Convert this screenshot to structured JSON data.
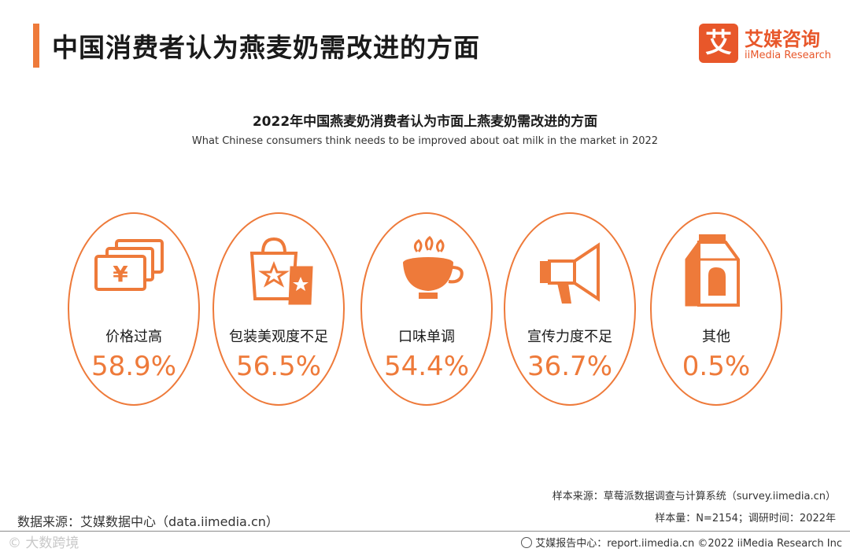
{
  "header": {
    "title": "中国消费者认为燕麦奶需改进的方面",
    "logo_mark": "艾",
    "logo_cn": "艾媒咨询",
    "logo_en": "iiMedia Research"
  },
  "chart_data": {
    "type": "table",
    "title": "2022年中国燕麦奶消费者认为市面上燕麦奶需改进的方面",
    "subtitle": "What Chinese consumers think needs to be improved about oat milk in the market in 2022",
    "categories": [
      "价格过高",
      "包装美观度不足",
      "口味单调",
      "宣传力度不足",
      "其他"
    ],
    "values": [
      58.9,
      56.5,
      54.4,
      36.7,
      0.5
    ],
    "value_labels": [
      "58.9%",
      "56.5%",
      "54.4%",
      "36.7%",
      "0.5%"
    ],
    "icons": [
      "money-icon",
      "shopping-bag-icon",
      "coffee-cup-icon",
      "megaphone-icon",
      "milk-carton-icon"
    ],
    "accent_color": "#ee7a3a"
  },
  "notes": {
    "sample_source": "样本来源：草莓派数据调查与计算系统（survey.iimedia.cn）",
    "sample_size": "样本量：N=2154；调研时间：2022年",
    "data_source": "数据来源：艾媒数据中心（data.iimedia.cn）"
  },
  "footer": {
    "watermark": "© 大数跨境",
    "report": "艾媒报告中心：report.iimedia.cn  ©2022  iiMedia Research  Inc"
  }
}
